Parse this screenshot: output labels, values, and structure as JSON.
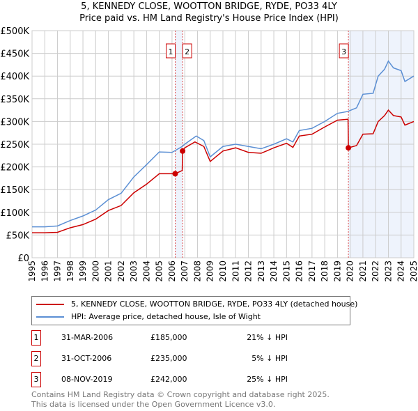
{
  "chart_data": {
    "type": "line",
    "title": "5, KENNEDY CLOSE, WOOTTON BRIDGE, RYDE, PO33 4LY",
    "subtitle": "Price paid vs. HM Land Registry's House Price Index (HPI)",
    "xlim": [
      1995,
      2025
    ],
    "ylim": [
      0,
      500000
    ],
    "x_ticks": [
      "1995",
      "1996",
      "1997",
      "1998",
      "1999",
      "2000",
      "2001",
      "2002",
      "2003",
      "2004",
      "2005",
      "2006",
      "2007",
      "2008",
      "2009",
      "2010",
      "2011",
      "2012",
      "2013",
      "2014",
      "2015",
      "2016",
      "2017",
      "2018",
      "2019",
      "2020",
      "2021",
      "2022",
      "2023",
      "2024",
      "2025"
    ],
    "y_ticks": [
      {
        "v": 0,
        "l": "£0"
      },
      {
        "v": 50000,
        "l": "£50K"
      },
      {
        "v": 100000,
        "l": "£100K"
      },
      {
        "v": 150000,
        "l": "£150K"
      },
      {
        "v": 200000,
        "l": "£200K"
      },
      {
        "v": 250000,
        "l": "£250K"
      },
      {
        "v": 300000,
        "l": "£300K"
      },
      {
        "v": 350000,
        "l": "£350K"
      },
      {
        "v": 400000,
        "l": "£400K"
      },
      {
        "v": 450000,
        "l": "£450K"
      },
      {
        "v": 500000,
        "l": "£500K"
      }
    ],
    "grid": true,
    "series": [
      {
        "name": "5, KENNEDY CLOSE, WOOTTON BRIDGE, RYDE, PO33 4LY (detached house)",
        "color": "#cc0000",
        "x": [
          1995,
          1996,
          1997,
          1998,
          1999,
          2000,
          2001,
          2002,
          2003,
          2004,
          2005,
          2006.25,
          2006.8,
          2006.83,
          2007,
          2007.8,
          2008.5,
          2009,
          2010,
          2011,
          2012,
          2013,
          2014,
          2015,
          2015.5,
          2016,
          2017,
          2018,
          2019,
          2019.83,
          2019.86,
          2020.5,
          2021,
          2021.8,
          2022.2,
          2022.7,
          2023,
          2023.4,
          2024,
          2024.3,
          2025
        ],
        "y": [
          55000,
          55000,
          56000,
          66000,
          73000,
          85000,
          104000,
          115000,
          143000,
          162000,
          185000,
          185000,
          192000,
          235000,
          242000,
          255000,
          245000,
          212000,
          235000,
          242000,
          232000,
          230000,
          242000,
          252000,
          243000,
          268000,
          272000,
          288000,
          303000,
          305000,
          242000,
          247000,
          272000,
          273000,
          300000,
          313000,
          325000,
          313000,
          310000,
          292000,
          300000
        ]
      },
      {
        "name": "HPI: Average price, detached house, Isle of Wight",
        "color": "#5b8fd4",
        "x": [
          1995,
          1996,
          1997,
          1998,
          1999,
          2000,
          2001,
          2002,
          2003,
          2004,
          2005,
          2006,
          2006.8,
          2007,
          2007.9,
          2008.5,
          2009,
          2010,
          2011,
          2012,
          2013,
          2014,
          2015,
          2015.5,
          2016,
          2017,
          2018,
          2019,
          2019.8,
          2020.5,
          2021,
          2021.8,
          2022.2,
          2022.7,
          2023,
          2023.4,
          2024,
          2024.3,
          2025
        ],
        "y": [
          68000,
          68000,
          70000,
          82000,
          92000,
          105000,
          128000,
          142000,
          178000,
          205000,
          233000,
          232000,
          245000,
          250000,
          268000,
          258000,
          222000,
          245000,
          250000,
          245000,
          240000,
          250000,
          262000,
          255000,
          280000,
          285000,
          300000,
          318000,
          322000,
          330000,
          360000,
          362000,
          400000,
          415000,
          433000,
          418000,
          412000,
          388000,
          400000
        ]
      }
    ],
    "sales": [
      {
        "id": "1",
        "x": 2006.25,
        "y": 185000,
        "date": "31-MAR-2006",
        "price": "£185,000",
        "hpi": "21% ↓ HPI"
      },
      {
        "id": "2",
        "x": 2006.83,
        "y": 235000,
        "date": "31-OCT-2006",
        "price": "£235,000",
        "hpi": "5% ↓ HPI"
      },
      {
        "id": "3",
        "x": 2019.86,
        "y": 242000,
        "date": "08-NOV-2019",
        "price": "£242,000",
        "hpi": "25% ↓ HPI"
      }
    ],
    "shaded": [
      [
        2006.25,
        2006.83
      ],
      [
        2019.86,
        2025
      ]
    ]
  },
  "footer": {
    "line1": "Contains HM Land Registry data © Crown copyright and database right 2025.",
    "line2": "This data is licensed under the Open Government Licence v3.0."
  }
}
